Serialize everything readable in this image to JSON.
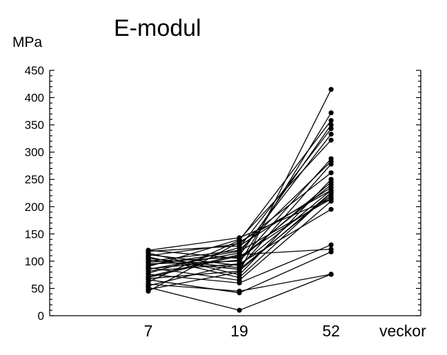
{
  "chart_data": {
    "type": "line",
    "title": "E-modul",
    "ylabel": "MPa",
    "xlabel": "veckor",
    "categories": [
      "7",
      "19",
      "52"
    ],
    "ylim": [
      0,
      450
    ],
    "yticks": [
      "0",
      "50",
      "100",
      "150",
      "200",
      "250",
      "300",
      "350",
      "400",
      "450"
    ],
    "grid": false,
    "series": [
      {
        "values": [
          48,
          80,
          415
        ]
      },
      {
        "values": [
          55,
          96,
          372
        ]
      },
      {
        "values": [
          62,
          138,
          358
        ]
      },
      {
        "values": [
          70,
          110,
          350
        ]
      },
      {
        "values": [
          78,
          125,
          343
        ]
      },
      {
        "values": [
          85,
          115,
          333
        ]
      },
      {
        "values": [
          90,
          140,
          322
        ]
      },
      {
        "values": [
          95,
          100,
          288
        ]
      },
      {
        "values": [
          100,
          120,
          283
        ]
      },
      {
        "values": [
          105,
          88,
          278
        ]
      },
      {
        "values": [
          110,
          132,
          262
        ]
      },
      {
        "values": [
          115,
          75,
          250
        ]
      },
      {
        "values": [
          120,
          105,
          240
        ]
      },
      {
        "values": [
          118,
          128,
          235
        ]
      },
      {
        "values": [
          112,
          92,
          230
        ]
      },
      {
        "values": [
          108,
          70,
          226
        ]
      },
      {
        "values": [
          102,
          85,
          222
        ]
      },
      {
        "values": [
          98,
          108,
          218
        ]
      },
      {
        "values": [
          93,
          118,
          214
        ]
      },
      {
        "values": [
          88,
          65,
          210
        ]
      },
      {
        "values": [
          82,
          95,
          195
        ]
      },
      {
        "values": [
          76,
          60,
          130
        ]
      },
      {
        "values": [
          72,
          112,
          122
        ]
      },
      {
        "values": [
          66,
          42,
          117
        ]
      },
      {
        "values": [
          58,
          45,
          76
        ]
      },
      {
        "values": [
          52,
          10,
          76
        ]
      },
      {
        "values": [
          45,
          135,
          230
        ]
      },
      {
        "values": [
          68,
          82,
          226
        ]
      },
      {
        "values": [
          86,
          102,
          245
        ]
      },
      {
        "values": [
          120,
          143,
          214
        ]
      }
    ]
  }
}
